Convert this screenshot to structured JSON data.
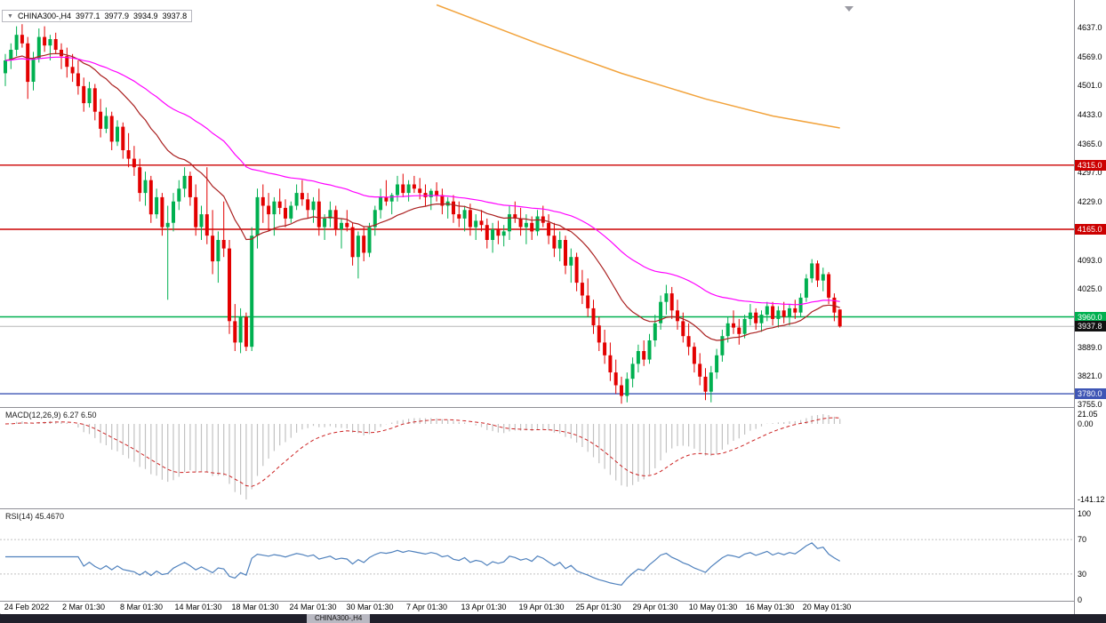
{
  "header": {
    "collapse_arrow": "▼",
    "symbol_period": "CHINA300-,H4",
    "open": "3977.1",
    "high": "3977.9",
    "low": "3934.9",
    "close": "3937.8"
  },
  "colors": {
    "bull": "#00b050",
    "bear": "#e30000",
    "macd_hist": "#c2c2c2",
    "macd_signal": "#cc2222",
    "rsi": "#4f81bd",
    "grid": "#c0c0c0",
    "current_price_line": "#b8b8b8",
    "badge_current_bg": "#111111"
  },
  "chart_data": {
    "type": "candlestick",
    "symbol": "CHINA300-",
    "timeframe": "H4",
    "price_axis": {
      "top_price": 4701.5,
      "bottom_price": 3749,
      "ticks": [
        4637.0,
        4569.0,
        4501.0,
        4433.0,
        4365.0,
        4297.0,
        4229.0,
        4093.0,
        4025.0,
        3889.0,
        3821.0,
        3755.0
      ]
    },
    "current_price": 3937.8,
    "hlines": [
      {
        "price": 4315.0,
        "color": "#cc0000",
        "name": "resistance-1"
      },
      {
        "price": 4165.0,
        "color": "#cc0000",
        "name": "resistance-2"
      },
      {
        "price": 3960.0,
        "color": "#00b050",
        "name": "support-green"
      },
      {
        "price": 3780.0,
        "color": "#3f56b5",
        "name": "support-blue"
      }
    ],
    "overlays": {
      "ma_fast": {
        "type": "ema",
        "period": 21,
        "color": "#aa2020"
      },
      "ma_slow": {
        "type": "ema",
        "period": 55,
        "color": "#ff00ff"
      },
      "ma_long_partial": {
        "color": "#f2a33c",
        "points": [
          [
            77,
            4690
          ],
          [
            95,
            4600
          ],
          [
            110,
            4530
          ],
          [
            125,
            4470
          ],
          [
            137,
            4430
          ],
          [
            149,
            4402
          ]
        ]
      }
    },
    "x_labels": [
      "24 Feb 2022",
      "2 Mar 01:30",
      "8 Mar 01:30",
      "14 Mar 01:30",
      "18 Mar 01:30",
      "24 Mar 01:30",
      "30 Mar 01:30",
      "7 Apr 01:30",
      "13 Apr 01:30",
      "19 Apr 01:30",
      "25 Apr 01:30",
      "29 Apr 01:30",
      "10 May 01:30",
      "16 May 01:30",
      "20 May 01:30"
    ],
    "candles": [
      [
        4530,
        4575,
        4500,
        4560
      ],
      [
        4560,
        4600,
        4540,
        4585
      ],
      [
        4585,
        4640,
        4570,
        4620
      ],
      [
        4620,
        4645,
        4590,
        4600
      ],
      [
        4600,
        4615,
        4470,
        4510
      ],
      [
        4510,
        4580,
        4490,
        4565
      ],
      [
        4565,
        4635,
        4555,
        4615
      ],
      [
        4615,
        4640,
        4580,
        4595
      ],
      [
        4595,
        4620,
        4560,
        4610
      ],
      [
        4610,
        4625,
        4575,
        4585
      ],
      [
        4585,
        4600,
        4540,
        4570
      ],
      [
        4570,
        4590,
        4520,
        4545
      ],
      [
        4545,
        4575,
        4510,
        4530
      ],
      [
        4530,
        4560,
        4480,
        4500
      ],
      [
        4500,
        4520,
        4440,
        4460
      ],
      [
        4460,
        4510,
        4450,
        4495
      ],
      [
        4495,
        4505,
        4420,
        4440
      ],
      [
        4440,
        4470,
        4380,
        4400
      ],
      [
        4400,
        4450,
        4390,
        4430
      ],
      [
        4430,
        4440,
        4350,
        4370
      ],
      [
        4370,
        4420,
        4360,
        4405
      ],
      [
        4405,
        4415,
        4330,
        4350
      ],
      [
        4350,
        4390,
        4310,
        4330
      ],
      [
        4330,
        4360,
        4290,
        4310
      ],
      [
        4310,
        4330,
        4230,
        4250
      ],
      [
        4250,
        4300,
        4220,
        4280
      ],
      [
        4280,
        4290,
        4180,
        4200
      ],
      [
        4200,
        4260,
        4190,
        4240
      ],
      [
        4240,
        4250,
        4150,
        4170
      ],
      [
        4170,
        4220,
        4000,
        4180
      ],
      [
        4180,
        4250,
        4160,
        4230
      ],
      [
        4230,
        4280,
        4210,
        4260
      ],
      [
        4260,
        4310,
        4240,
        4290
      ],
      [
        4290,
        4300,
        4220,
        4240
      ],
      [
        4240,
        4270,
        4150,
        4170
      ],
      [
        4170,
        4220,
        4140,
        4200
      ],
      [
        4200,
        4310,
        4130,
        4150
      ],
      [
        4150,
        4210,
        4060,
        4090
      ],
      [
        4090,
        4160,
        4040,
        4140
      ],
      [
        4140,
        4230,
        4100,
        4120
      ],
      [
        4120,
        4140,
        3920,
        3950
      ],
      [
        3950,
        3990,
        3880,
        3900
      ],
      [
        3900,
        3980,
        3875,
        3960
      ],
      [
        3960,
        3970,
        3880,
        3890
      ],
      [
        3890,
        4170,
        3880,
        4150
      ],
      [
        4150,
        4260,
        4120,
        4240
      ],
      [
        4240,
        4270,
        4180,
        4220
      ],
      [
        4220,
        4250,
        4160,
        4200
      ],
      [
        4200,
        4240,
        4150,
        4230
      ],
      [
        4230,
        4260,
        4200,
        4215
      ],
      [
        4215,
        4235,
        4170,
        4190
      ],
      [
        4190,
        4230,
        4180,
        4220
      ],
      [
        4220,
        4270,
        4210,
        4250
      ],
      [
        4250,
        4280,
        4220,
        4235
      ],
      [
        4235,
        4250,
        4190,
        4210
      ],
      [
        4210,
        4240,
        4180,
        4230
      ],
      [
        4230,
        4260,
        4150,
        4170
      ],
      [
        4170,
        4200,
        4140,
        4190
      ],
      [
        4190,
        4230,
        4170,
        4210
      ],
      [
        4210,
        4220,
        4150,
        4165
      ],
      [
        4165,
        4190,
        4120,
        4180
      ],
      [
        4180,
        4210,
        4160,
        4170
      ],
      [
        4170,
        4180,
        4080,
        4100
      ],
      [
        4100,
        4160,
        4050,
        4150
      ],
      [
        4150,
        4170,
        4090,
        4110
      ],
      [
        4110,
        4180,
        4100,
        4170
      ],
      [
        4170,
        4220,
        4150,
        4210
      ],
      [
        4210,
        4260,
        4190,
        4240
      ],
      [
        4240,
        4280,
        4220,
        4230
      ],
      [
        4230,
        4250,
        4200,
        4245
      ],
      [
        4245,
        4290,
        4230,
        4270
      ],
      [
        4270,
        4295,
        4240,
        4250
      ],
      [
        4250,
        4280,
        4230,
        4270
      ],
      [
        4270,
        4290,
        4250,
        4260
      ],
      [
        4260,
        4285,
        4235,
        4250
      ],
      [
        4250,
        4270,
        4220,
        4240
      ],
      [
        4240,
        4260,
        4210,
        4255
      ],
      [
        4255,
        4275,
        4230,
        4245
      ],
      [
        4245,
        4260,
        4200,
        4220
      ],
      [
        4220,
        4240,
        4190,
        4230
      ],
      [
        4230,
        4245,
        4180,
        4200
      ],
      [
        4200,
        4230,
        4170,
        4190
      ],
      [
        4190,
        4220,
        4160,
        4210
      ],
      [
        4210,
        4225,
        4150,
        4170
      ],
      [
        4170,
        4200,
        4140,
        4185
      ],
      [
        4185,
        4210,
        4160,
        4175
      ],
      [
        4175,
        4190,
        4120,
        4140
      ],
      [
        4140,
        4180,
        4110,
        4165
      ],
      [
        4165,
        4185,
        4130,
        4150
      ],
      [
        4150,
        4175,
        4125,
        4160
      ],
      [
        4160,
        4220,
        4140,
        4200
      ],
      [
        4200,
        4230,
        4180,
        4190
      ],
      [
        4190,
        4215,
        4150,
        4170
      ],
      [
        4170,
        4200,
        4130,
        4180
      ],
      [
        4180,
        4195,
        4140,
        4160
      ],
      [
        4160,
        4210,
        4150,
        4195
      ],
      [
        4195,
        4220,
        4170,
        4180
      ],
      [
        4180,
        4200,
        4130,
        4150
      ],
      [
        4150,
        4180,
        4100,
        4120
      ],
      [
        4120,
        4160,
        4090,
        4140
      ],
      [
        4140,
        4150,
        4060,
        4080
      ],
      [
        4080,
        4120,
        4040,
        4100
      ],
      [
        4100,
        4110,
        4020,
        4040
      ],
      [
        4040,
        4070,
        3990,
        4010
      ],
      [
        4010,
        4050,
        3960,
        3980
      ],
      [
        3980,
        4000,
        3920,
        3940
      ],
      [
        3940,
        3960,
        3880,
        3900
      ],
      [
        3900,
        3930,
        3850,
        3870
      ],
      [
        3870,
        3900,
        3810,
        3830
      ],
      [
        3830,
        3860,
        3780,
        3800
      ],
      [
        3800,
        3820,
        3757,
        3775
      ],
      [
        3775,
        3830,
        3760,
        3815
      ],
      [
        3815,
        3865,
        3795,
        3850
      ],
      [
        3850,
        3895,
        3830,
        3880
      ],
      [
        3880,
        3905,
        3845,
        3860
      ],
      [
        3860,
        3920,
        3850,
        3905
      ],
      [
        3905,
        3965,
        3890,
        3945
      ],
      [
        3945,
        4010,
        3930,
        3995
      ],
      [
        3995,
        4035,
        3965,
        4015
      ],
      [
        4015,
        4030,
        3955,
        3975
      ],
      [
        3975,
        4000,
        3930,
        3950
      ],
      [
        3950,
        3970,
        3900,
        3915
      ],
      [
        3915,
        3945,
        3870,
        3890
      ],
      [
        3890,
        3900,
        3830,
        3850
      ],
      [
        3850,
        3875,
        3800,
        3820
      ],
      [
        3820,
        3840,
        3765,
        3785
      ],
      [
        3785,
        3845,
        3760,
        3830
      ],
      [
        3830,
        3885,
        3815,
        3870
      ],
      [
        3870,
        3930,
        3855,
        3915
      ],
      [
        3915,
        3960,
        3900,
        3945
      ],
      [
        3945,
        3975,
        3920,
        3935
      ],
      [
        3935,
        3955,
        3895,
        3920
      ],
      [
        3920,
        3965,
        3910,
        3955
      ],
      [
        3955,
        3990,
        3940,
        3970
      ],
      [
        3970,
        3980,
        3930,
        3945
      ],
      [
        3945,
        3975,
        3925,
        3965
      ],
      [
        3965,
        3995,
        3950,
        3985
      ],
      [
        3985,
        3995,
        3940,
        3955
      ],
      [
        3955,
        3985,
        3935,
        3975
      ],
      [
        3975,
        3995,
        3945,
        3960
      ],
      [
        3960,
        3990,
        3940,
        3980
      ],
      [
        3980,
        4000,
        3955,
        3970
      ],
      [
        3970,
        4015,
        3960,
        4005
      ],
      [
        4005,
        4060,
        3995,
        4050
      ],
      [
        4050,
        4095,
        4040,
        4085
      ],
      [
        4085,
        4092,
        4030,
        4045
      ],
      [
        4045,
        4075,
        4020,
        4060
      ],
      [
        4060,
        4065,
        3990,
        4005
      ],
      [
        4005,
        4015,
        3950,
        3970
      ],
      [
        3977.1,
        3977.9,
        3934.9,
        3937.8
      ]
    ],
    "macd": {
      "label": "MACD(12,26,9) 6.27 6.50",
      "fast": 12,
      "slow": 26,
      "signal_period": 9,
      "value": 6.27,
      "signal_value": 6.5,
      "axis_labels": [
        "21.05",
        "0.00",
        "-141.12"
      ]
    },
    "rsi": {
      "label": "RSI(14) 45.4670",
      "period": 14,
      "value": 45.467,
      "levels": [
        70,
        30
      ],
      "axis_labels": [
        "100",
        "70",
        "30",
        "0"
      ]
    }
  },
  "bottom_bar": {
    "active_tab_label": "CHINA300-,H4"
  }
}
